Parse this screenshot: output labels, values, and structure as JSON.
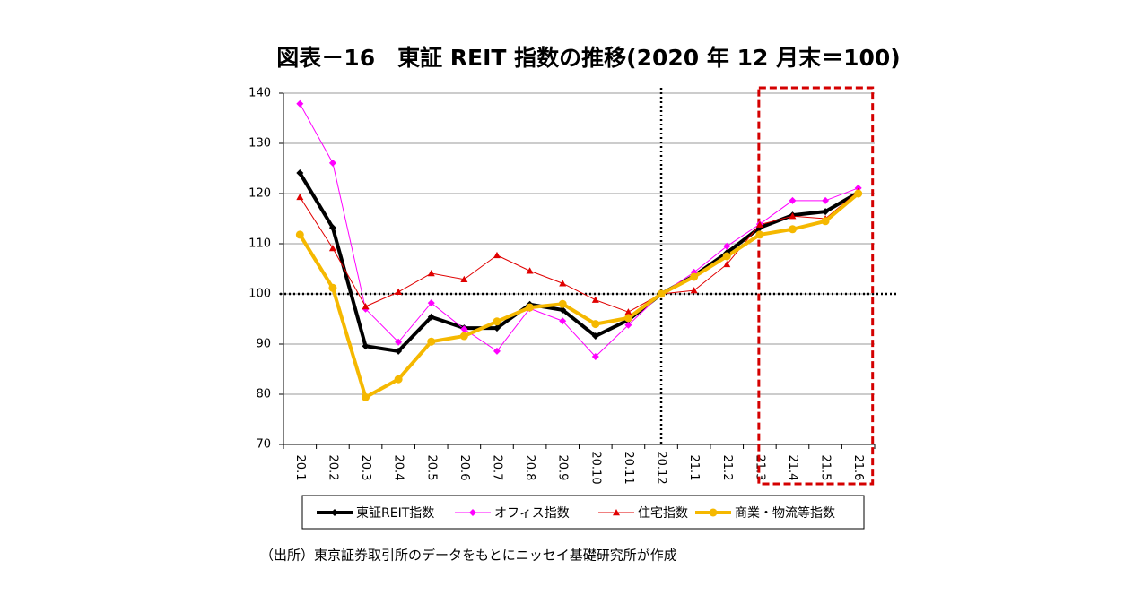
{
  "chart_data": {
    "type": "line",
    "title": "図表－16　東証 REIT 指数の推移(2020 年 12 月末＝100)",
    "note": "（出所）東京証券取引所のデータをもとにニッセイ基礎研究所が作成",
    "categories": [
      "20.1",
      "20.2",
      "20.3",
      "20.4",
      "20.5",
      "20.6",
      "20.7",
      "20.8",
      "20.9",
      "20.10",
      "20.11",
      "20.12",
      "21.1",
      "21.2",
      "21.3",
      "21.4",
      "21.5",
      "21.6"
    ],
    "series": [
      {
        "name": "東証REIT指数",
        "color": "#000000",
        "marker": "diamond",
        "width": 4,
        "values": [
          124.1,
          113.2,
          89.6,
          88.6,
          95.4,
          93.2,
          93.2,
          97.9,
          96.8,
          91.6,
          94.8,
          100,
          103.6,
          108.2,
          113.2,
          115.7,
          116.4,
          120.2
        ]
      },
      {
        "name": "オフィス指数",
        "color": "#ff00ff",
        "marker": "diamond",
        "width": 1,
        "values": [
          137.9,
          126.1,
          97.0,
          90.4,
          98.2,
          93.0,
          88.6,
          97.1,
          94.6,
          87.5,
          93.8,
          100,
          104.3,
          109.5,
          113.9,
          118.6,
          118.6,
          121.1
        ]
      },
      {
        "name": "住宅指数",
        "color": "#e00000",
        "marker": "triangle",
        "width": 1,
        "values": [
          119.3,
          109.1,
          97.5,
          100.4,
          104.1,
          102.9,
          107.7,
          104.6,
          102.1,
          98.8,
          96.4,
          100,
          100.7,
          105.9,
          113.8,
          115.5,
          115.0,
          120.4
        ]
      },
      {
        "name": "商業・物流等指数",
        "color": "#f5b800",
        "marker": "circle",
        "width": 4,
        "values": [
          111.8,
          101.2,
          79.4,
          83.0,
          90.5,
          91.6,
          94.5,
          97.3,
          98.0,
          94.0,
          95.2,
          100,
          103.4,
          107.5,
          111.8,
          112.9,
          114.5,
          120.0
        ]
      }
    ],
    "ylim": [
      70,
      140
    ],
    "yticks": [
      70,
      80,
      90,
      100,
      110,
      120,
      130,
      140
    ],
    "grid": true,
    "hline": 100,
    "vline": "20.12",
    "highlight": [
      "21.3",
      "21.6"
    ],
    "legend": "bottom"
  }
}
